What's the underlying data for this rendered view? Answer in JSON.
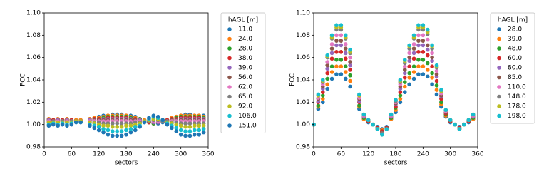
{
  "chart_data": [
    {
      "type": "scatter",
      "xlabel": "sectors",
      "ylabel": "FCC",
      "legend_title": "hAGL [m]",
      "legend": "outside right",
      "xlim": [
        0,
        360
      ],
      "xticks": [
        0,
        60,
        120,
        180,
        240,
        300,
        360
      ],
      "ylim": [
        0.98,
        1.1
      ],
      "yticks": [
        0.98,
        {
          "value": 1,
          "label": "1.00"
        },
        1.02,
        1.04,
        1.06,
        1.08,
        {
          "value": 1.1,
          "label": "1.10"
        }
      ],
      "x": [
        10,
        20,
        30,
        40,
        50,
        60,
        70,
        80,
        100,
        110,
        120,
        130,
        140,
        150,
        160,
        170,
        180,
        190,
        200,
        210,
        220,
        230,
        240,
        250,
        260,
        270,
        280,
        290,
        300,
        310,
        320,
        330,
        340,
        350
      ],
      "series": [
        {
          "name": "11.0",
          "color": "#1f77b4",
          "values": [
            1.005,
            1.004,
            1.005,
            1.004,
            1.005,
            1.004,
            1.004,
            1.004,
            1.005,
            1.006,
            1.007,
            1.008,
            1.008,
            1.009,
            1.009,
            1.009,
            1.008,
            1.008,
            1.007,
            1.005,
            1.004,
            1.002,
            1.001,
            1.001,
            1.002,
            1.004,
            1.006,
            1.007,
            1.008,
            1.009,
            1.009,
            1.008,
            1.008,
            1.008
          ]
        },
        {
          "name": "24.0",
          "color": "#ff7f0e",
          "values": [
            1.005,
            1.004,
            1.005,
            1.004,
            1.005,
            1.004,
            1.004,
            1.004,
            1.005,
            1.006,
            1.006,
            1.007,
            1.008,
            1.008,
            1.008,
            1.008,
            1.008,
            1.007,
            1.006,
            1.005,
            1.004,
            1.002,
            1.001,
            1.002,
            1.003,
            1.004,
            1.006,
            1.007,
            1.008,
            1.008,
            1.008,
            1.008,
            1.008,
            1.007
          ]
        },
        {
          "name": "28.0",
          "color": "#2ca02c",
          "values": [
            1.004,
            1.004,
            1.004,
            1.004,
            1.004,
            1.004,
            1.003,
            1.003,
            1.004,
            1.005,
            1.005,
            1.006,
            1.007,
            1.007,
            1.007,
            1.007,
            1.007,
            1.006,
            1.005,
            1.005,
            1.003,
            1.002,
            1.001,
            1.002,
            1.003,
            1.004,
            1.005,
            1.006,
            1.007,
            1.007,
            1.007,
            1.007,
            1.007,
            1.006
          ]
        },
        {
          "name": "38.0",
          "color": "#d62728",
          "values": [
            1.004,
            1.004,
            1.004,
            1.004,
            1.004,
            1.004,
            1.003,
            1.003,
            1.004,
            1.005,
            1.005,
            1.005,
            1.006,
            1.006,
            1.006,
            1.006,
            1.006,
            1.005,
            1.005,
            1.004,
            1.003,
            1.002,
            1.002,
            1.002,
            1.003,
            1.004,
            1.005,
            1.005,
            1.006,
            1.006,
            1.006,
            1.006,
            1.006,
            1.005
          ]
        },
        {
          "name": "39.0",
          "color": "#9467bd",
          "values": [
            1.004,
            1.003,
            1.004,
            1.003,
            1.004,
            1.003,
            1.003,
            1.003,
            1.004,
            1.004,
            1.004,
            1.005,
            1.005,
            1.005,
            1.005,
            1.005,
            1.005,
            1.005,
            1.004,
            1.004,
            1.003,
            1.003,
            1.002,
            1.002,
            1.003,
            1.003,
            1.004,
            1.004,
            1.005,
            1.005,
            1.005,
            1.005,
            1.005,
            1.005
          ]
        },
        {
          "name": "56.0",
          "color": "#8c564b",
          "values": [
            1.003,
            1.003,
            1.003,
            1.003,
            1.003,
            1.003,
            1.003,
            1.003,
            1.003,
            1.004,
            1.004,
            1.004,
            1.004,
            1.004,
            1.004,
            1.004,
            1.004,
            1.004,
            1.004,
            1.003,
            1.003,
            1.003,
            1.003,
            1.003,
            1.003,
            1.003,
            1.004,
            1.004,
            1.004,
            1.004,
            1.004,
            1.004,
            1.004,
            1.004
          ]
        },
        {
          "name": "62.0",
          "color": "#e377c2",
          "values": [
            1.003,
            1.003,
            1.003,
            1.003,
            1.003,
            1.003,
            1.003,
            1.003,
            1.003,
            1.003,
            1.003,
            1.003,
            1.003,
            1.003,
            1.003,
            1.003,
            1.003,
            1.003,
            1.003,
            1.003,
            1.003,
            1.003,
            1.003,
            1.003,
            1.003,
            1.003,
            1.003,
            1.003,
            1.003,
            1.003,
            1.003,
            1.003,
            1.003,
            1.003
          ]
        },
        {
          "name": "65.0",
          "color": "#7f7f7f",
          "values": [
            1.002,
            1.003,
            1.002,
            1.003,
            1.002,
            1.003,
            1.003,
            1.003,
            1.002,
            1.002,
            1.002,
            1.001,
            1.001,
            1.001,
            1.001,
            1.001,
            1.001,
            1.001,
            1.002,
            1.002,
            1.003,
            1.003,
            1.004,
            1.004,
            1.003,
            1.003,
            1.002,
            1.002,
            1.001,
            1.001,
            1.001,
            1.001,
            1.001,
            1.001
          ]
        },
        {
          "name": "92.0",
          "color": "#bcbd22",
          "values": [
            1.002,
            1.002,
            1.002,
            1.002,
            1.002,
            1.002,
            1.003,
            1.003,
            1.002,
            1.001,
            1.0,
            0.999,
            0.999,
            0.998,
            0.998,
            0.998,
            0.999,
            0.999,
            1.0,
            1.001,
            1.003,
            1.004,
            1.005,
            1.005,
            1.004,
            1.002,
            1.001,
            1.0,
            0.999,
            0.998,
            0.998,
            0.999,
            0.999,
            0.999
          ]
        },
        {
          "name": "106.0",
          "color": "#17becf",
          "values": [
            1.0,
            1.001,
            1.0,
            1.001,
            1.0,
            1.001,
            1.002,
            1.002,
            1.0,
            0.999,
            0.998,
            0.996,
            0.995,
            0.994,
            0.994,
            0.994,
            0.995,
            0.996,
            0.998,
            0.999,
            1.002,
            1.005,
            1.007,
            1.006,
            1.004,
            1.001,
            0.999,
            0.997,
            0.995,
            0.994,
            0.994,
            0.995,
            0.995,
            0.996
          ]
        },
        {
          "name": "151.0",
          "color": "#1f77b4",
          "values": [
            0.999,
            1.0,
            0.999,
            1.0,
            0.999,
            1.0,
            1.002,
            1.002,
            0.999,
            0.997,
            0.995,
            0.993,
            0.991,
            0.99,
            0.99,
            0.99,
            0.991,
            0.993,
            0.995,
            0.998,
            1.002,
            1.006,
            1.008,
            1.007,
            1.004,
            1.0,
            0.997,
            0.994,
            0.991,
            0.99,
            0.99,
            0.991,
            0.991,
            0.993
          ]
        }
      ]
    },
    {
      "type": "scatter",
      "xlabel": "sectors",
      "ylabel": "FCC",
      "legend_title": "hAGL [m]",
      "legend": "outside right",
      "xlim": [
        0,
        360
      ],
      "xticks": [
        0,
        60,
        120,
        180,
        240,
        300,
        360
      ],
      "ylim": [
        0.98,
        1.1
      ],
      "yticks": [
        0.98,
        {
          "value": 1,
          "label": "1.00"
        },
        1.02,
        1.04,
        1.06,
        1.08,
        {
          "value": 1.1,
          "label": "1.10"
        }
      ],
      "x": [
        0,
        10,
        20,
        30,
        40,
        50,
        60,
        70,
        80,
        100,
        110,
        120,
        130,
        140,
        150,
        160,
        170,
        180,
        190,
        200,
        210,
        220,
        230,
        240,
        250,
        260,
        270,
        280,
        290,
        300,
        310,
        320,
        330,
        340,
        350
      ],
      "series": [
        {
          "name": "28.0",
          "color": "#1f77b4",
          "values": [
            1,
            1.014,
            1.02,
            1.032,
            1.041,
            1.045,
            1.045,
            1.041,
            1.034,
            1.014,
            1.005,
            1.002,
            1,
            0.998,
            0.996,
            0.998,
            1.005,
            1.011,
            1.02,
            1.029,
            1.036,
            1.041,
            1.045,
            1.045,
            1.043,
            1.036,
            1.027,
            1.016,
            1.007,
            1.002,
            1,
            0.998,
            1,
            1.002,
            1.005
          ]
        },
        {
          "name": "39.0",
          "color": "#ff7f0e",
          "values": [
            1,
            1.016,
            1.023,
            1.036,
            1.047,
            1.052,
            1.052,
            1.047,
            1.039,
            1.016,
            1.005,
            1.003,
            1,
            0.997,
            0.995,
            0.997,
            1.005,
            1.013,
            1.023,
            1.034,
            1.042,
            1.047,
            1.052,
            1.052,
            1.049,
            1.042,
            1.031,
            1.018,
            1.008,
            1.003,
            1,
            0.997,
            1,
            1.003,
            1.005
          ]
        },
        {
          "name": "48.0",
          "color": "#2ca02c",
          "values": [
            1,
            1.017,
            1.026,
            1.041,
            1.052,
            1.058,
            1.058,
            1.052,
            1.044,
            1.017,
            1.006,
            1.003,
            1,
            0.997,
            0.994,
            0.997,
            1.006,
            1.015,
            1.026,
            1.038,
            1.046,
            1.052,
            1.058,
            1.058,
            1.055,
            1.046,
            1.035,
            1.02,
            1.009,
            1.003,
            1,
            0.997,
            1,
            1.003,
            1.006
          ]
        },
        {
          "name": "60.0",
          "color": "#d62728",
          "values": [
            1,
            1.02,
            1.029,
            1.046,
            1.059,
            1.065,
            1.065,
            1.059,
            1.049,
            1.02,
            1.007,
            1.003,
            1,
            0.997,
            0.994,
            0.997,
            1.007,
            1.016,
            1.029,
            1.042,
            1.052,
            1.059,
            1.065,
            1.065,
            1.062,
            1.052,
            1.039,
            1.023,
            1.01,
            1.003,
            1,
            0.997,
            1,
            1.003,
            1.007
          ]
        },
        {
          "name": "80.0",
          "color": "#9467bd",
          "values": [
            1,
            1.021,
            1.032,
            1.05,
            1.064,
            1.071,
            1.071,
            1.064,
            1.053,
            1.021,
            1.007,
            1.004,
            1,
            0.996,
            0.993,
            0.996,
            1.007,
            1.018,
            1.032,
            1.046,
            1.057,
            1.064,
            1.071,
            1.071,
            1.067,
            1.057,
            1.043,
            1.025,
            1.011,
            1.004,
            1,
            0.996,
            1,
            1.004,
            1.007
          ]
        },
        {
          "name": "85.0",
          "color": "#8c564b",
          "values": [
            1,
            1.023,
            1.034,
            1.053,
            1.068,
            1.075,
            1.075,
            1.068,
            1.056,
            1.023,
            1.008,
            1.004,
            1,
            0.996,
            0.993,
            0.996,
            1.008,
            1.019,
            1.034,
            1.049,
            1.06,
            1.068,
            1.075,
            1.075,
            1.071,
            1.06,
            1.045,
            1.026,
            1.011,
            1.004,
            1,
            0.996,
            1,
            1.004,
            1.008
          ]
        },
        {
          "name": "110.0",
          "color": "#e377c2",
          "values": [
            1,
            1.024,
            1.036,
            1.056,
            1.072,
            1.08,
            1.08,
            1.072,
            1.06,
            1.024,
            1.008,
            1.004,
            1,
            0.996,
            0.992,
            0.996,
            1.008,
            1.02,
            1.036,
            1.052,
            1.064,
            1.072,
            1.08,
            1.08,
            1.076,
            1.064,
            1.048,
            1.028,
            1.012,
            1.004,
            1,
            0.996,
            1,
            1.004,
            1.008
          ]
        },
        {
          "name": "148.0",
          "color": "#7f7f7f",
          "values": [
            1,
            1.026,
            1.038,
            1.06,
            1.077,
            1.085,
            1.085,
            1.077,
            1.064,
            1.026,
            1.009,
            1.004,
            1,
            0.996,
            0.992,
            0.996,
            1.009,
            1.021,
            1.038,
            1.055,
            1.068,
            1.077,
            1.085,
            1.085,
            1.081,
            1.068,
            1.051,
            1.03,
            1.013,
            1.004,
            1,
            0.996,
            1,
            1.004,
            1.009
          ]
        },
        {
          "name": "178.0",
          "color": "#bcbd22",
          "values": [
            1,
            1.026,
            1.039,
            1.061,
            1.078,
            1.087,
            1.087,
            1.078,
            1.065,
            1.026,
            1.009,
            1.004,
            1,
            0.996,
            0.991,
            0.996,
            1.009,
            1.022,
            1.039,
            1.057,
            1.07,
            1.078,
            1.087,
            1.087,
            1.083,
            1.07,
            1.052,
            1.03,
            1.013,
            1.004,
            1,
            0.996,
            1,
            1.004,
            1.009
          ]
        },
        {
          "name": "198.0",
          "color": "#17becf",
          "values": [
            1,
            1.027,
            1.04,
            1.062,
            1.08,
            1.089,
            1.089,
            1.08,
            1.067,
            1.027,
            1.009,
            1.004,
            1,
            0.996,
            0.991,
            0.996,
            1.009,
            1.022,
            1.04,
            1.058,
            1.071,
            1.08,
            1.089,
            1.089,
            1.085,
            1.071,
            1.053,
            1.031,
            1.013,
            1.004,
            1,
            0.996,
            1,
            1.004,
            1.009
          ]
        }
      ]
    }
  ]
}
